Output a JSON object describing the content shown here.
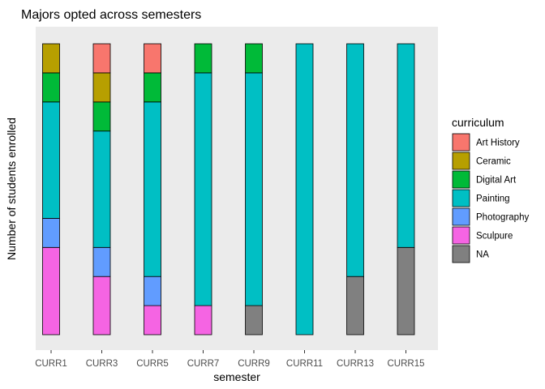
{
  "chart_data": {
    "type": "bar",
    "stacked": true,
    "title": "Majors opted across semesters",
    "xlabel": "semester",
    "ylabel": "Number of students enrolled",
    "categories": [
      "CURR1",
      "CURR3",
      "CURR5",
      "CURR7",
      "CURR9",
      "CURR11",
      "CURR13",
      "CURR15"
    ],
    "ylim": [
      0,
      10
    ],
    "grid": false,
    "y_ticks_shown": false,
    "legend": {
      "title": "curriculum",
      "placement": "right"
    },
    "series": [
      {
        "name": "Art History",
        "color": "#F8766D",
        "values": [
          0,
          1,
          1,
          0,
          0,
          0,
          0,
          0
        ]
      },
      {
        "name": "Ceramic",
        "color": "#B79F00",
        "values": [
          1,
          1,
          0,
          0,
          0,
          0,
          0,
          0
        ]
      },
      {
        "name": "Digital Art",
        "color": "#00BA38",
        "values": [
          1,
          1,
          1,
          1,
          1,
          0,
          0,
          0
        ]
      },
      {
        "name": "Painting",
        "color": "#00BFC4",
        "values": [
          4,
          4,
          6,
          8,
          8,
          10,
          8,
          7
        ]
      },
      {
        "name": "Photography",
        "color": "#619CFF",
        "values": [
          1,
          1,
          1,
          0,
          0,
          0,
          0,
          0
        ]
      },
      {
        "name": "Sculpure",
        "color": "#F564E3",
        "values": [
          3,
          2,
          1,
          1,
          0,
          0,
          0,
          0
        ]
      },
      {
        "name": "NA",
        "color": "#808080",
        "values": [
          0,
          0,
          0,
          0,
          1,
          0,
          2,
          3
        ]
      }
    ]
  }
}
